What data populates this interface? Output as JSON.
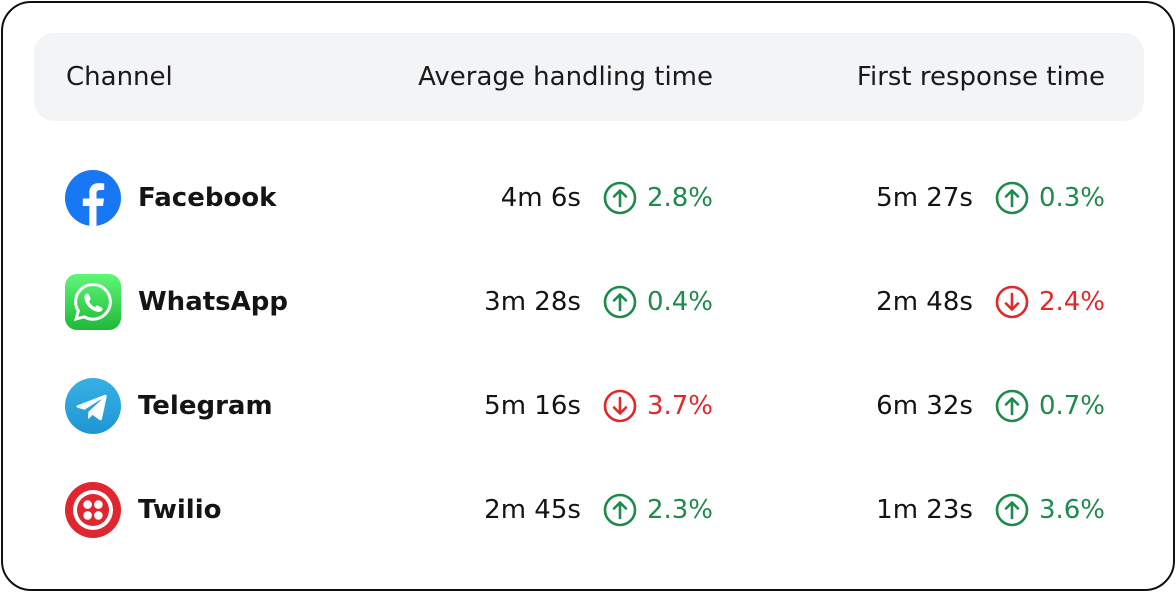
{
  "table": {
    "headers": {
      "channel": "Channel",
      "aht": "Average handling time",
      "frt": "First response time"
    },
    "rows": [
      {
        "channel": "Facebook",
        "icon": "facebook-logo-icon",
        "aht": {
          "value": "4m 6s",
          "direction": "up",
          "change": "2.8%"
        },
        "frt": {
          "value": "5m 27s",
          "direction": "up",
          "change": "0.3%"
        }
      },
      {
        "channel": "WhatsApp",
        "icon": "whatsapp-logo-icon",
        "aht": {
          "value": "3m 28s",
          "direction": "up",
          "change": "0.4%"
        },
        "frt": {
          "value": "2m 48s",
          "direction": "down",
          "change": "2.4%"
        }
      },
      {
        "channel": "Telegram",
        "icon": "telegram-logo-icon",
        "aht": {
          "value": "5m 16s",
          "direction": "down",
          "change": "3.7%"
        },
        "frt": {
          "value": "6m 32s",
          "direction": "up",
          "change": "0.7%"
        }
      },
      {
        "channel": "Twilio",
        "icon": "twilio-logo-icon",
        "aht": {
          "value": "2m 45s",
          "direction": "up",
          "change": "2.3%"
        },
        "frt": {
          "value": "1m 23s",
          "direction": "up",
          "change": "3.6%"
        }
      }
    ]
  },
  "colors": {
    "up": "#1e8a4c",
    "down": "#e02a2a",
    "header_bg": "#f3f4f6",
    "facebook": "#1877f2",
    "whatsapp": "#2fc943",
    "telegram": "#2aa3e0",
    "twilio": "#e0262f"
  }
}
